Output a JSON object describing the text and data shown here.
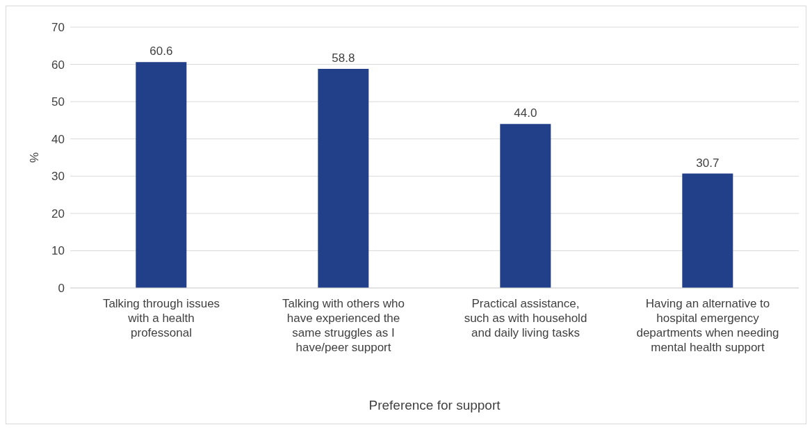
{
  "chart_data": {
    "type": "bar",
    "xlabel": "Preference for support",
    "ylabel": "%",
    "categories": [
      "Talking through issues with a health professonal",
      "Talking with others who have experienced the same struggles as I have/peer support",
      "Practical assistance, such as with household and daily living tasks",
      "Having an alternative to hospital emergency departments when needing mental health support"
    ],
    "values": [
      60.6,
      58.8,
      44.0,
      30.7
    ],
    "value_labels": [
      "60.6",
      "58.8",
      "44.0",
      "30.7"
    ],
    "color": "#223f8a",
    "ylim": [
      0,
      70
    ],
    "yticks": [
      0,
      10,
      20,
      30,
      40,
      50,
      60,
      70
    ],
    "grid": "y"
  }
}
